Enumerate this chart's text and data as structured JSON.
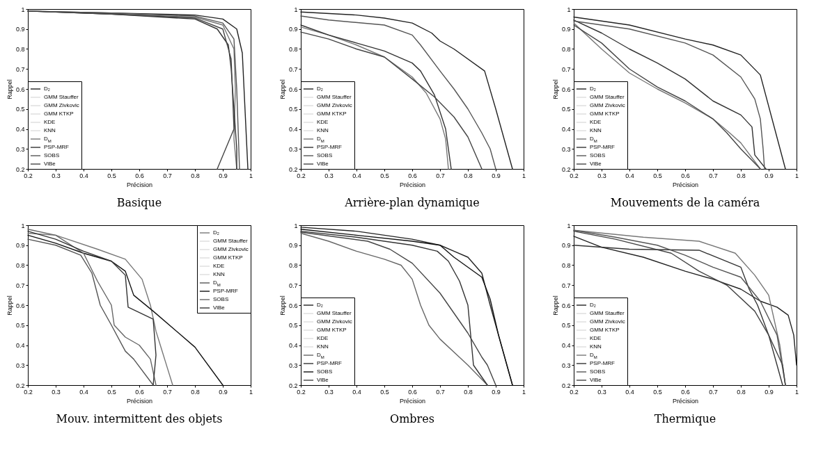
{
  "chart_data": [
    {
      "type": "line",
      "title": "Basique",
      "xlabel": "Précision",
      "ylabel": "Rappel",
      "xlim": [
        0.2,
        1
      ],
      "ylim": [
        0.2,
        1
      ],
      "xticks": [
        0.2,
        0.3,
        0.4,
        0.5,
        0.6,
        0.7,
        0.8,
        0.9,
        1
      ],
      "yticks": [
        0.2,
        0.3,
        0.4,
        0.5,
        0.6,
        0.7,
        0.8,
        0.9,
        1
      ],
      "legend": "bottom left",
      "marker": "none",
      "line_style": "solid",
      "grid": false,
      "series": [
        {
          "name": "D₂",
          "color": "#222222",
          "x": [
            0.2,
            0.5,
            0.8,
            0.9,
            0.95,
            0.97,
            0.99
          ],
          "values": [
            0.99,
            0.98,
            0.97,
            0.95,
            0.9,
            0.78,
            0.2
          ]
        },
        {
          "name": "GMM Stauffer",
          "color": "#dddddd"
        },
        {
          "name": "GMM Zivkovic",
          "color": "#dddddd"
        },
        {
          "name": "GMM KTKP",
          "color": "#dddddd"
        },
        {
          "name": "KDE",
          "color": "#dddddd"
        },
        {
          "name": "KNN",
          "color": "#dddddd"
        },
        {
          "name": "D$_{M}$",
          "color": "#777777",
          "x": [
            0.2,
            0.5,
            0.8,
            0.9,
            0.94,
            0.945,
            0.94,
            0.95
          ],
          "values": [
            0.99,
            0.975,
            0.96,
            0.92,
            0.8,
            0.6,
            0.35,
            0.2
          ]
        },
        {
          "name": "PSP-MRF",
          "color": "#333333",
          "x": [
            0.2,
            0.5,
            0.8,
            0.88,
            0.92,
            0.93,
            0.94,
            0.95,
            0.95
          ],
          "values": [
            0.99,
            0.975,
            0.95,
            0.9,
            0.82,
            0.7,
            0.5,
            0.3,
            0.2
          ]
        },
        {
          "name": "SOBS",
          "color": "#555555",
          "x": [
            0.2,
            0.5,
            0.8,
            0.9,
            0.94,
            0.95,
            0.96
          ],
          "values": [
            0.99,
            0.98,
            0.965,
            0.93,
            0.85,
            0.6,
            0.2
          ]
        },
        {
          "name": "ViBe",
          "color": "#444444",
          "x": [
            0.2,
            0.5,
            0.8,
            0.9,
            0.93,
            0.94,
            0.88
          ],
          "values": [
            0.99,
            0.975,
            0.955,
            0.9,
            0.75,
            0.4,
            0.2
          ]
        }
      ]
    },
    {
      "type": "line",
      "title": "Arrière-plan dynamique",
      "xlabel": "Précision",
      "ylabel": "Rappel",
      "xlim": [
        0.2,
        1
      ],
      "ylim": [
        0.2,
        1
      ],
      "xticks": [
        0.2,
        0.3,
        0.4,
        0.5,
        0.6,
        0.7,
        0.8,
        0.9,
        1
      ],
      "yticks": [
        0.2,
        0.3,
        0.4,
        0.5,
        0.6,
        0.7,
        0.8,
        0.9,
        1
      ],
      "legend": "bottom left",
      "marker": "none",
      "line_style": "solid",
      "grid": false,
      "series": [
        {
          "name": "D₂",
          "color": "#222222",
          "x": [
            0.2,
            0.4,
            0.5,
            0.6,
            0.67,
            0.7,
            0.75,
            0.86,
            0.9,
            0.96
          ],
          "values": [
            0.985,
            0.97,
            0.955,
            0.93,
            0.88,
            0.84,
            0.8,
            0.69,
            0.5,
            0.2
          ]
        },
        {
          "name": "GMM Stauffer",
          "color": "#dddddd"
        },
        {
          "name": "GMM Zivkovic",
          "color": "#dddddd"
        },
        {
          "name": "GMM KTKP",
          "color": "#dddddd"
        },
        {
          "name": "KDE",
          "color": "#dddddd"
        },
        {
          "name": "KNN",
          "color": "#dddddd"
        },
        {
          "name": "D$_{M}$",
          "color": "#777777",
          "x": [
            0.2,
            0.3,
            0.4,
            0.5,
            0.6,
            0.65,
            0.7,
            0.72,
            0.73
          ],
          "values": [
            0.91,
            0.87,
            0.82,
            0.76,
            0.66,
            0.58,
            0.45,
            0.35,
            0.2
          ]
        },
        {
          "name": "PSP-MRF",
          "color": "#333333",
          "x": [
            0.2,
            0.3,
            0.4,
            0.5,
            0.6,
            0.63,
            0.68,
            0.72,
            0.74
          ],
          "values": [
            0.92,
            0.87,
            0.83,
            0.79,
            0.73,
            0.69,
            0.57,
            0.4,
            0.2
          ]
        },
        {
          "name": "SOBS",
          "color": "#555555",
          "x": [
            0.2,
            0.3,
            0.5,
            0.6,
            0.63,
            0.7,
            0.75,
            0.8,
            0.85,
            0.88,
            0.9
          ],
          "values": [
            0.965,
            0.945,
            0.92,
            0.87,
            0.82,
            0.69,
            0.6,
            0.5,
            0.38,
            0.3,
            0.2
          ]
        },
        {
          "name": "ViBe",
          "color": "#444444",
          "x": [
            0.2,
            0.3,
            0.4,
            0.5,
            0.6,
            0.68,
            0.75,
            0.8,
            0.85
          ],
          "values": [
            0.885,
            0.85,
            0.8,
            0.76,
            0.65,
            0.56,
            0.46,
            0.36,
            0.2
          ]
        }
      ]
    },
    {
      "type": "line",
      "title": "Mouvements de la caméra",
      "xlabel": "Précision",
      "ylabel": "Rappel",
      "xlim": [
        0.2,
        1
      ],
      "ylim": [
        0.2,
        1
      ],
      "xticks": [
        0.2,
        0.3,
        0.4,
        0.5,
        0.6,
        0.7,
        0.8,
        0.9,
        1
      ],
      "yticks": [
        0.2,
        0.3,
        0.4,
        0.5,
        0.6,
        0.7,
        0.8,
        0.9,
        1
      ],
      "legend": "bottom left",
      "marker": "none",
      "line_style": "solid",
      "grid": false,
      "series": [
        {
          "name": "D₂",
          "color": "#222222",
          "x": [
            0.2,
            0.4,
            0.6,
            0.7,
            0.8,
            0.87,
            0.96
          ],
          "values": [
            0.96,
            0.92,
            0.85,
            0.82,
            0.77,
            0.67,
            0.2
          ]
        },
        {
          "name": "GMM Stauffer",
          "color": "#dddddd"
        },
        {
          "name": "GMM Zivkovic",
          "color": "#dddddd"
        },
        {
          "name": "GMM KTKP",
          "color": "#dddddd"
        },
        {
          "name": "KDE",
          "color": "#dddddd"
        },
        {
          "name": "KNN",
          "color": "#dddddd"
        },
        {
          "name": "D$_{M}$",
          "color": "#777777",
          "x": [
            0.2,
            0.3,
            0.4,
            0.5,
            0.6,
            0.7,
            0.76,
            0.8,
            0.87
          ],
          "values": [
            0.93,
            0.8,
            0.68,
            0.6,
            0.53,
            0.45,
            0.38,
            0.33,
            0.2
          ]
        },
        {
          "name": "PSP-MRF",
          "color": "#333333",
          "x": [
            0.2,
            0.3,
            0.4,
            0.5,
            0.6,
            0.7,
            0.8,
            0.84,
            0.85,
            0.89
          ],
          "values": [
            0.945,
            0.88,
            0.8,
            0.73,
            0.65,
            0.54,
            0.47,
            0.41,
            0.27,
            0.2
          ]
        },
        {
          "name": "SOBS",
          "color": "#555555",
          "x": [
            0.2,
            0.4,
            0.6,
            0.7,
            0.8,
            0.85,
            0.87,
            0.88,
            0.885
          ],
          "values": [
            0.94,
            0.9,
            0.83,
            0.77,
            0.66,
            0.55,
            0.45,
            0.3,
            0.2
          ]
        },
        {
          "name": "ViBe",
          "color": "#444444",
          "x": [
            0.2,
            0.3,
            0.4,
            0.5,
            0.6,
            0.7,
            0.75,
            0.8,
            0.87
          ],
          "values": [
            0.92,
            0.83,
            0.7,
            0.61,
            0.54,
            0.45,
            0.38,
            0.3,
            0.2
          ]
        }
      ]
    },
    {
      "type": "line",
      "title": "Mouv. intermittent des objets",
      "xlabel": "Précision",
      "ylabel": "Rappel",
      "xlim": [
        0.2,
        1
      ],
      "ylim": [
        0.2,
        1
      ],
      "xticks": [
        0.2,
        0.3,
        0.4,
        0.5,
        0.6,
        0.7,
        0.8,
        0.9,
        1
      ],
      "yticks": [
        0.2,
        0.3,
        0.4,
        0.5,
        0.6,
        0.7,
        0.8,
        0.9,
        1
      ],
      "legend": "top right",
      "marker": "none",
      "line_style": "solid",
      "grid": false,
      "series": [
        {
          "name": "D₂",
          "color": "#777777",
          "x": [
            0.2,
            0.3,
            0.45,
            0.55,
            0.61,
            0.64,
            0.66,
            0.68,
            0.7,
            0.72
          ],
          "values": [
            0.96,
            0.95,
            0.88,
            0.83,
            0.73,
            0.6,
            0.47,
            0.38,
            0.29,
            0.2
          ]
        },
        {
          "name": "GMM Stauffer",
          "color": "#dddddd"
        },
        {
          "name": "GMM Zivkovic",
          "color": "#dddddd"
        },
        {
          "name": "GMM KTKP",
          "color": "#dddddd"
        },
        {
          "name": "KDE",
          "color": "#dddddd"
        },
        {
          "name": "KNN",
          "color": "#dddddd"
        },
        {
          "name": "D$_{M}$",
          "color": "#555555",
          "x": [
            0.2,
            0.3,
            0.39,
            0.43,
            0.46,
            0.5,
            0.55,
            0.58,
            0.65
          ],
          "values": [
            0.93,
            0.9,
            0.85,
            0.76,
            0.6,
            0.5,
            0.37,
            0.33,
            0.2
          ]
        },
        {
          "name": "PSP-MRF",
          "color": "#111111",
          "x": [
            0.2,
            0.3,
            0.4,
            0.5,
            0.55,
            0.58,
            0.65,
            0.8,
            0.9
          ],
          "values": [
            0.95,
            0.91,
            0.86,
            0.82,
            0.77,
            0.65,
            0.57,
            0.39,
            0.2
          ]
        },
        {
          "name": "SOBS",
          "color": "#666666",
          "x": [
            0.2,
            0.3,
            0.4,
            0.45,
            0.5,
            0.51,
            0.55,
            0.6,
            0.64,
            0.66
          ],
          "values": [
            0.98,
            0.95,
            0.86,
            0.72,
            0.6,
            0.5,
            0.44,
            0.4,
            0.33,
            0.2
          ]
        },
        {
          "name": "ViBe",
          "color": "#333333",
          "x": [
            0.2,
            0.3,
            0.4,
            0.5,
            0.55,
            0.56,
            0.65,
            0.66,
            0.65
          ],
          "values": [
            0.97,
            0.93,
            0.87,
            0.82,
            0.75,
            0.59,
            0.53,
            0.35,
            0.2
          ]
        }
      ]
    },
    {
      "type": "line",
      "title": "Ombres",
      "xlabel": "Précision",
      "ylabel": "Rappel",
      "xlim": [
        0.2,
        1
      ],
      "ylim": [
        0.2,
        1
      ],
      "xticks": [
        0.2,
        0.3,
        0.4,
        0.5,
        0.6,
        0.7,
        0.8,
        0.9,
        1
      ],
      "yticks": [
        0.2,
        0.3,
        0.4,
        0.5,
        0.6,
        0.7,
        0.8,
        0.9,
        1
      ],
      "legend": "bottom left",
      "marker": "none",
      "line_style": "solid",
      "grid": false,
      "series": [
        {
          "name": "D₂",
          "color": "#222222",
          "x": [
            0.2,
            0.4,
            0.6,
            0.7,
            0.75,
            0.8,
            0.85,
            0.88,
            0.92,
            0.96
          ],
          "values": [
            0.99,
            0.97,
            0.93,
            0.9,
            0.87,
            0.84,
            0.76,
            0.6,
            0.4,
            0.2
          ]
        },
        {
          "name": "GMM Stauffer",
          "color": "#dddddd"
        },
        {
          "name": "GMM Zivkovic",
          "color": "#dddddd"
        },
        {
          "name": "GMM KTKP",
          "color": "#dddddd"
        },
        {
          "name": "KDE",
          "color": "#dddddd"
        },
        {
          "name": "KNN",
          "color": "#dddddd"
        },
        {
          "name": "D$_{M}$",
          "color": "#666666",
          "x": [
            0.2,
            0.3,
            0.4,
            0.5,
            0.56,
            0.6,
            0.63,
            0.66,
            0.7,
            0.8,
            0.87
          ],
          "values": [
            0.96,
            0.92,
            0.87,
            0.83,
            0.8,
            0.73,
            0.6,
            0.5,
            0.43,
            0.3,
            0.2
          ]
        },
        {
          "name": "PSP-MRF",
          "color": "#333333",
          "x": [
            0.2,
            0.4,
            0.6,
            0.69,
            0.73,
            0.77,
            0.8,
            0.81,
            0.82,
            0.87
          ],
          "values": [
            0.97,
            0.94,
            0.9,
            0.87,
            0.82,
            0.72,
            0.6,
            0.45,
            0.3,
            0.2
          ]
        },
        {
          "name": "SOBS",
          "color": "#111111",
          "x": [
            0.2,
            0.4,
            0.6,
            0.7,
            0.75,
            0.85,
            0.88,
            0.91,
            0.94,
            0.96
          ],
          "values": [
            0.98,
            0.95,
            0.92,
            0.9,
            0.84,
            0.74,
            0.63,
            0.45,
            0.3,
            0.2
          ]
        },
        {
          "name": "ViBe",
          "color": "#444444",
          "x": [
            0.2,
            0.44,
            0.52,
            0.6,
            0.7,
            0.8,
            0.85,
            0.87,
            0.9
          ],
          "values": [
            0.965,
            0.92,
            0.88,
            0.81,
            0.66,
            0.46,
            0.34,
            0.3,
            0.2
          ]
        }
      ]
    },
    {
      "type": "line",
      "title": "Thermique",
      "xlabel": "Précision",
      "ylabel": "Rappel",
      "xlim": [
        0.2,
        1
      ],
      "ylim": [
        0.2,
        1
      ],
      "xticks": [
        0.2,
        0.3,
        0.4,
        0.5,
        0.6,
        0.7,
        0.8,
        0.9,
        1
      ],
      "yticks": [
        0.2,
        0.3,
        0.4,
        0.5,
        0.6,
        0.7,
        0.8,
        0.9,
        1
      ],
      "legend": "bottom left",
      "marker": "none",
      "line_style": "solid",
      "grid": false,
      "series": [
        {
          "name": "D₂",
          "color": "#222222",
          "x": [
            0.2,
            0.3,
            0.45,
            0.6,
            0.7,
            0.8,
            0.87,
            0.93,
            0.97,
            0.99,
            1.0
          ],
          "values": [
            0.945,
            0.89,
            0.84,
            0.77,
            0.73,
            0.68,
            0.62,
            0.59,
            0.55,
            0.45,
            0.3
          ]
        },
        {
          "name": "GMM Stauffer",
          "color": "#dddddd"
        },
        {
          "name": "GMM Zivkovic",
          "color": "#dddddd"
        },
        {
          "name": "GMM KTKP",
          "color": "#dddddd"
        },
        {
          "name": "KDE",
          "color": "#dddddd"
        },
        {
          "name": "KNN",
          "color": "#dddddd"
        },
        {
          "name": "D$_{M}$",
          "color": "#777777",
          "x": [
            0.2,
            0.45,
            0.65,
            0.78,
            0.85,
            0.9,
            0.94,
            0.96
          ],
          "values": [
            0.975,
            0.94,
            0.92,
            0.86,
            0.75,
            0.65,
            0.4,
            0.2
          ]
        },
        {
          "name": "PSP-MRF",
          "color": "#333333",
          "x": [
            0.2,
            0.4,
            0.65,
            0.8,
            0.83,
            0.86,
            0.9,
            0.95
          ],
          "values": [
            0.9,
            0.88,
            0.875,
            0.79,
            0.68,
            0.6,
            0.45,
            0.2
          ]
        },
        {
          "name": "SOBS",
          "color": "#555555",
          "x": [
            0.2,
            0.35,
            0.5,
            0.6,
            0.7,
            0.8,
            0.87,
            0.93,
            0.96
          ],
          "values": [
            0.975,
            0.94,
            0.9,
            0.85,
            0.79,
            0.74,
            0.62,
            0.45,
            0.2
          ]
        },
        {
          "name": "ViBe",
          "color": "#444444",
          "x": [
            0.2,
            0.35,
            0.55,
            0.65,
            0.75,
            0.85,
            0.9,
            0.95,
            0.96
          ],
          "values": [
            0.97,
            0.93,
            0.86,
            0.77,
            0.7,
            0.57,
            0.45,
            0.3,
            0.2
          ]
        }
      ]
    }
  ]
}
